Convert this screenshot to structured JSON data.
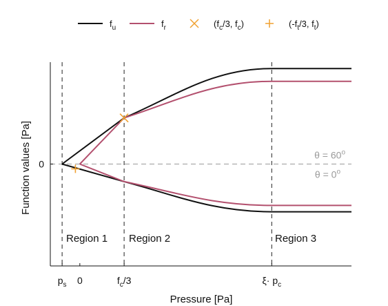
{
  "chart_data": {
    "type": "line",
    "title": "",
    "xlabel": "Pressure [Pa]",
    "ylabel": "Function values [Pa]",
    "legend": {
      "placement": "top",
      "entries": [
        {
          "name": "f",
          "sub": "u",
          "kind": "line",
          "color": "#111111"
        },
        {
          "name": "f",
          "sub": "r",
          "kind": "line",
          "color": "#b3506e"
        },
        {
          "name": "(f",
          "sub": "c",
          "rest": "/3, f",
          "sub2": "c",
          "tail": ")",
          "kind": "x-marker",
          "color": "#f0a030"
        },
        {
          "name": "(-f",
          "sub": "t",
          "rest": "/3, f",
          "sub2": "t",
          "tail": ")",
          "kind": "plus-marker",
          "color": "#f0a030"
        }
      ]
    },
    "xticks": [
      {
        "text": "p",
        "sub": "s",
        "x": -0.6
      },
      {
        "text": "0",
        "x": 0
      },
      {
        "text": "f",
        "sub": "c",
        "tail": "/3",
        "x": 1.5
      },
      {
        "text": "ξ· p",
        "sub": "c",
        "x": 6.5
      }
    ],
    "yticks": [
      {
        "text": "0",
        "y": 0
      }
    ],
    "xlim": [
      -1,
      9.2
    ],
    "ylim": [
      -3.2,
      3.2
    ],
    "vlines": [
      -0.6,
      1.5,
      6.5
    ],
    "hline": 0,
    "hline_labels": [
      {
        "text": "θ = 60",
        "sup": "o"
      },
      {
        "text": "θ = 0",
        "sup": "o"
      }
    ],
    "regions": [
      "Region 1",
      "Region 2",
      "Region 3"
    ],
    "series": [
      {
        "name": "f_u upper",
        "color": "#111111",
        "x": [
          -0.6,
          1.5,
          6.5,
          9.2
        ],
        "y": [
          0,
          1.45,
          3.0,
          3.0
        ]
      },
      {
        "name": "f_u lower",
        "color": "#111111",
        "x": [
          -0.6,
          1.5,
          6.5,
          9.2
        ],
        "y": [
          0,
          -0.55,
          -1.5,
          -1.5
        ]
      },
      {
        "name": "f_r upper",
        "color": "#b3506e",
        "x": [
          0,
          1.5,
          6.5,
          9.2
        ],
        "y": [
          0,
          1.45,
          2.6,
          2.6
        ]
      },
      {
        "name": "f_r lower",
        "color": "#b3506e",
        "x": [
          0,
          1.5,
          6.5,
          9.2
        ],
        "y": [
          0,
          -0.55,
          -1.3,
          -1.3
        ]
      }
    ],
    "markers": [
      {
        "type": "x",
        "x": 1.5,
        "y": 1.45,
        "color": "#f0a030"
      },
      {
        "type": "plus",
        "x": -0.15,
        "y": -0.15,
        "color": "#f0a030"
      }
    ],
    "grid": false
  }
}
